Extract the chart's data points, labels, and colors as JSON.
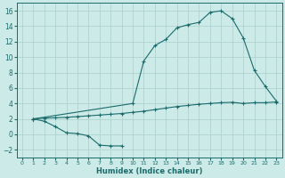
{
  "xlabel": "Humidex (Indice chaleur)",
  "background_color": "#cceae8",
  "grid_color": "#aacfcc",
  "line_color": "#1a6b6b",
  "xlim": [
    -0.5,
    23.5
  ],
  "ylim": [
    -3,
    17
  ],
  "yticks": [
    -2,
    0,
    2,
    4,
    6,
    8,
    10,
    12,
    14,
    16
  ],
  "xticks": [
    0,
    1,
    2,
    3,
    4,
    5,
    6,
    7,
    8,
    9,
    10,
    11,
    12,
    13,
    14,
    15,
    16,
    17,
    18,
    19,
    20,
    21,
    22,
    23
  ],
  "line1_x": [
    1,
    2,
    3,
    4,
    5,
    6,
    7,
    8,
    9
  ],
  "line1_y": [
    2.0,
    1.7,
    1.0,
    0.2,
    0.1,
    -0.2,
    -1.4,
    -1.5,
    -1.5
  ],
  "line2_x": [
    1,
    2,
    3,
    4,
    5,
    6,
    7,
    8,
    9,
    10,
    11,
    12,
    13,
    14,
    15,
    16,
    17,
    18,
    19,
    20,
    21,
    22,
    23
  ],
  "line2_y": [
    2.0,
    2.1,
    2.15,
    2.2,
    2.3,
    2.4,
    2.5,
    2.6,
    2.7,
    2.85,
    3.0,
    3.2,
    3.4,
    3.6,
    3.75,
    3.9,
    4.0,
    4.1,
    4.15,
    4.0,
    4.1,
    4.1,
    4.2
  ],
  "line3_x": [
    1,
    10,
    11,
    12,
    13,
    14,
    15,
    16,
    17,
    18,
    19,
    20,
    21,
    22,
    23
  ],
  "line3_y": [
    2.0,
    4.0,
    9.5,
    11.5,
    12.3,
    13.8,
    14.2,
    14.5,
    15.8,
    16.0,
    15.0,
    12.5,
    8.3,
    6.2,
    4.3
  ]
}
